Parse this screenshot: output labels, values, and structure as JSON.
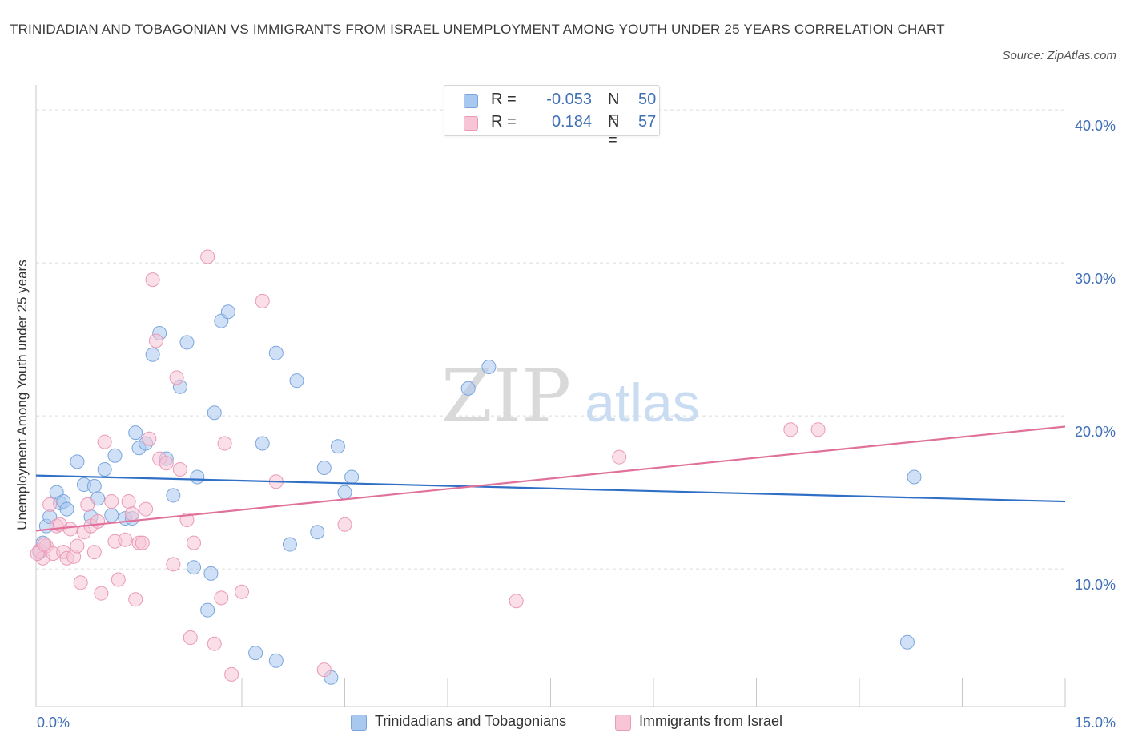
{
  "title": "TRINIDADIAN AND TOBAGONIAN VS IMMIGRANTS FROM ISRAEL UNEMPLOYMENT AMONG YOUTH UNDER 25 YEARS CORRELATION CHART",
  "source": "Source: ZipAtlas.com",
  "watermark": {
    "zip": "ZIP",
    "atlas": "atlas"
  },
  "legend": {
    "rows": [
      {
        "r_label": "R =",
        "r_value": "-0.053",
        "n_label": "N =",
        "n_value": "50",
        "color": "#a9c8f0",
        "border": "#7aa6dc"
      },
      {
        "r_label": "R =",
        "r_value": "0.184",
        "n_label": "N =",
        "n_value": "57",
        "color": "#f7c5d6",
        "border": "#e99ab6"
      }
    ]
  },
  "chart_data": {
    "type": "scatter",
    "xlabel": "",
    "ylabel": "Unemployment Among Youth under 25 years",
    "xlim": [
      0,
      15
    ],
    "ylim": [
      1,
      41
    ],
    "x_tick_labels": [
      "0.0%",
      "15.0%"
    ],
    "y_ticks": [
      10,
      20,
      30,
      40
    ],
    "y_tick_labels": [
      "10.0%",
      "20.0%",
      "30.0%",
      "40.0%"
    ],
    "grid": true,
    "series": [
      {
        "name": "Trinidadians and Tobagonians",
        "color": "#a9c8f0",
        "stroke": "#7aa6dc",
        "trend_color": "#2f6fc6",
        "trend": [
          [
            0,
            16.1
          ],
          [
            15,
            14.4
          ]
        ],
        "points": [
          [
            0.1,
            11.7
          ],
          [
            0.15,
            12.8
          ],
          [
            0.2,
            13.4
          ],
          [
            0.3,
            15.0
          ],
          [
            0.35,
            14.3
          ],
          [
            0.4,
            14.4
          ],
          [
            0.45,
            13.9
          ],
          [
            0.6,
            17.0
          ],
          [
            0.7,
            15.5
          ],
          [
            0.8,
            13.4
          ],
          [
            0.85,
            15.4
          ],
          [
            0.9,
            14.6
          ],
          [
            1.0,
            16.5
          ],
          [
            1.1,
            13.5
          ],
          [
            1.15,
            17.4
          ],
          [
            1.3,
            13.3
          ],
          [
            1.4,
            13.3
          ],
          [
            1.45,
            18.9
          ],
          [
            1.5,
            17.9
          ],
          [
            1.6,
            18.2
          ],
          [
            1.7,
            24.0
          ],
          [
            1.8,
            25.4
          ],
          [
            1.9,
            17.2
          ],
          [
            2.0,
            14.8
          ],
          [
            2.1,
            21.9
          ],
          [
            2.2,
            24.8
          ],
          [
            2.3,
            10.1
          ],
          [
            2.35,
            16.0
          ],
          [
            2.5,
            7.3
          ],
          [
            2.55,
            9.7
          ],
          [
            2.6,
            20.2
          ],
          [
            2.7,
            26.2
          ],
          [
            2.8,
            26.8
          ],
          [
            3.2,
            4.5
          ],
          [
            3.3,
            18.2
          ],
          [
            3.5,
            24.1
          ],
          [
            3.5,
            4.0
          ],
          [
            3.7,
            11.6
          ],
          [
            3.8,
            22.3
          ],
          [
            4.1,
            12.4
          ],
          [
            4.2,
            16.6
          ],
          [
            4.3,
            2.9
          ],
          [
            4.4,
            18.0
          ],
          [
            4.5,
            15.0
          ],
          [
            4.6,
            16.0
          ],
          [
            6.3,
            21.8
          ],
          [
            6.6,
            23.2
          ],
          [
            12.8,
            16.0
          ],
          [
            12.7,
            5.2
          ],
          [
            0.05,
            11.1
          ]
        ]
      },
      {
        "name": "Immigrants from Israel",
        "color": "#f7c5d6",
        "stroke": "#e99ab6",
        "trend_color": "#e0719a",
        "trend": [
          [
            0,
            12.5
          ],
          [
            15,
            19.3
          ]
        ],
        "points": [
          [
            0.05,
            11.2
          ],
          [
            0.1,
            10.7
          ],
          [
            0.15,
            11.5
          ],
          [
            0.2,
            14.2
          ],
          [
            0.25,
            11.0
          ],
          [
            0.3,
            12.8
          ],
          [
            0.35,
            12.9
          ],
          [
            0.4,
            11.1
          ],
          [
            0.45,
            10.7
          ],
          [
            0.5,
            12.6
          ],
          [
            0.55,
            10.8
          ],
          [
            0.6,
            11.5
          ],
          [
            0.65,
            9.1
          ],
          [
            0.7,
            12.4
          ],
          [
            0.75,
            14.2
          ],
          [
            0.8,
            12.8
          ],
          [
            0.85,
            11.1
          ],
          [
            0.9,
            13.1
          ],
          [
            0.95,
            8.4
          ],
          [
            1.0,
            18.3
          ],
          [
            1.1,
            14.4
          ],
          [
            1.15,
            11.8
          ],
          [
            1.2,
            9.3
          ],
          [
            1.3,
            11.9
          ],
          [
            1.35,
            14.4
          ],
          [
            1.4,
            13.6
          ],
          [
            1.45,
            8.0
          ],
          [
            1.5,
            11.7
          ],
          [
            1.55,
            11.7
          ],
          [
            1.6,
            13.9
          ],
          [
            1.65,
            18.5
          ],
          [
            1.7,
            28.9
          ],
          [
            1.75,
            24.9
          ],
          [
            1.8,
            17.2
          ],
          [
            1.9,
            16.9
          ],
          [
            2.0,
            10.3
          ],
          [
            2.05,
            22.5
          ],
          [
            2.1,
            16.5
          ],
          [
            2.2,
            13.2
          ],
          [
            2.25,
            5.5
          ],
          [
            2.3,
            11.7
          ],
          [
            2.5,
            30.4
          ],
          [
            2.6,
            5.1
          ],
          [
            2.7,
            8.1
          ],
          [
            2.75,
            18.2
          ],
          [
            2.85,
            3.1
          ],
          [
            3.0,
            8.5
          ],
          [
            3.3,
            27.5
          ],
          [
            3.5,
            15.7
          ],
          [
            4.2,
            3.4
          ],
          [
            4.5,
            12.9
          ],
          [
            7.0,
            7.9
          ],
          [
            8.5,
            17.3
          ],
          [
            11.0,
            19.1
          ],
          [
            11.4,
            19.1
          ],
          [
            0.02,
            11.0
          ],
          [
            0.12,
            11.6
          ]
        ]
      }
    ]
  }
}
